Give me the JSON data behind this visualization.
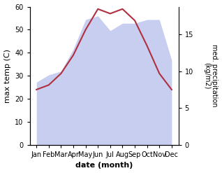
{
  "months": [
    "Jan",
    "Feb",
    "Mar",
    "Apr",
    "May",
    "Jun",
    "Jul",
    "Aug",
    "Sep",
    "Oct",
    "Nov",
    "Dec"
  ],
  "temp": [
    24,
    26,
    31,
    39,
    50,
    59,
    57,
    59,
    54,
    43,
    31,
    24
  ],
  "precip": [
    8.5,
    9.5,
    10,
    13,
    17,
    17.5,
    15.5,
    16.5,
    16.5,
    17,
    17,
    11.5
  ],
  "temp_ylim": [
    0,
    60
  ],
  "precip_ylim": [
    0,
    18.75
  ],
  "temp_yticks": [
    0,
    10,
    20,
    30,
    40,
    50,
    60
  ],
  "precip_yticks": [
    0,
    5,
    10,
    15
  ],
  "line_color": "#b03040",
  "fill_color": "#aab4e8",
  "fill_alpha": 0.65,
  "xlabel": "date (month)",
  "ylabel_left": "max temp (C)",
  "ylabel_right": "med. precipitation\n(kg/m2)",
  "bg_color": "#ffffff"
}
